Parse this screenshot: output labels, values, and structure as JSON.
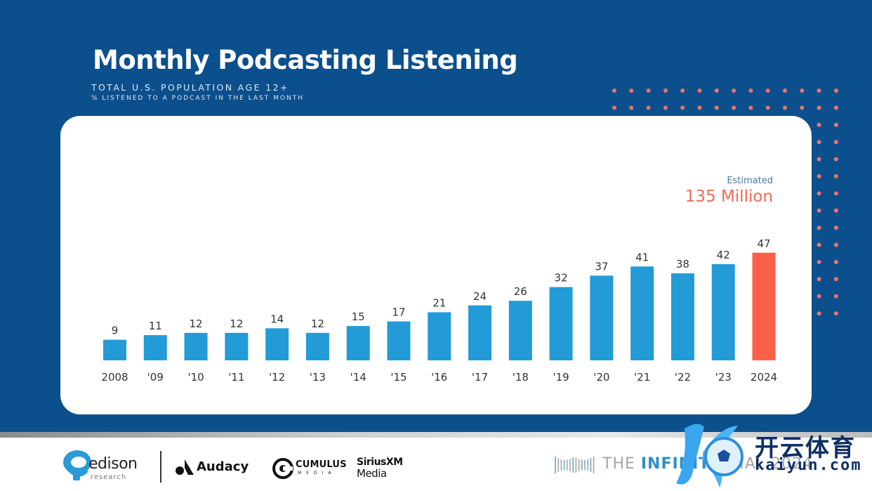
{
  "header": {
    "title": "Monthly Podcasting Listening",
    "subtitle": "TOTAL U.S. POPULATION AGE 12+",
    "subtitle2": "% LISTENED TO A PODCAST IN THE LAST MONTH"
  },
  "annotation": {
    "label": "Estimated",
    "value": "135 Million"
  },
  "colors": {
    "background": "#0c4f8d",
    "bar": "#229bd6",
    "highlight_bar": "#fb614a",
    "dots": "#e9756a",
    "estimate_text": "#f06a55"
  },
  "chart_data": {
    "type": "bar",
    "title": "Monthly Podcasting Listening",
    "subtitle": "Total U.S. Population Age 12+ — % listened to a podcast in the last month",
    "xlabel": "",
    "ylabel": "%",
    "categories": [
      "2008",
      "'09",
      "'10",
      "'11",
      "'12",
      "'13",
      "'14",
      "'15",
      "'16",
      "'17",
      "'18",
      "'19",
      "'20",
      "'21",
      "'22",
      "'23",
      "2024"
    ],
    "values": [
      9,
      11,
      12,
      12,
      14,
      12,
      15,
      17,
      21,
      24,
      26,
      32,
      37,
      41,
      38,
      42,
      47
    ],
    "highlight_index": 16,
    "data_labels": true,
    "grid": false,
    "ylim": [
      0,
      50
    ],
    "annotation": "Estimated 135 Million"
  },
  "footer": {
    "edison": {
      "word": "edison",
      "sub": "research"
    },
    "audacy": "Audacy",
    "cumulus": {
      "word": "CUMULUS",
      "sub": "MEDIA"
    },
    "sirius": {
      "word": "SiriusXM",
      "sub": "Media"
    },
    "infinite_dial": {
      "pre": "THE ",
      "bold": "INFINITE",
      "post": " DIAL 2024"
    }
  },
  "watermark": {
    "cn": "开云体育",
    "en": "kaiyun.com"
  }
}
